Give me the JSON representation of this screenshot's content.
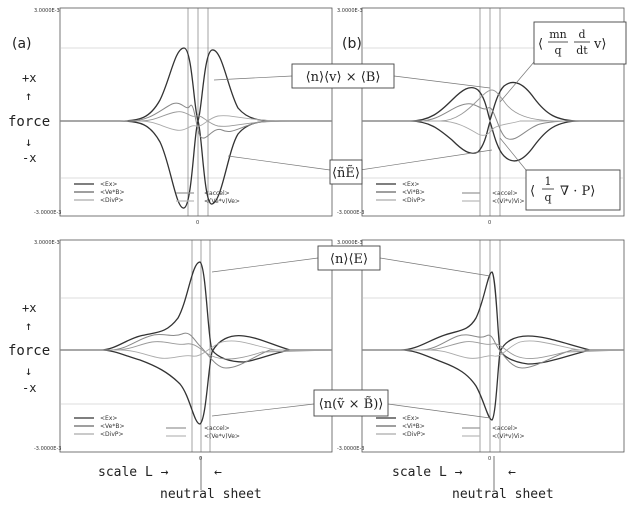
{
  "panel_labels": {
    "a": "(a)",
    "b": "(b)"
  },
  "axis_text": {
    "top_tick": "3.0000E-3",
    "bottom_tick": "-3.0000E-3",
    "zero_tick": "0"
  },
  "side_labels": {
    "plus_x": "+x",
    "up_arrow": "↑",
    "force": "force",
    "down_arrow": "↓",
    "minus_x": "-x"
  },
  "legends": {
    "electron": [
      "<Ex>",
      "<Ve*B>",
      "<DivP>",
      "<accel>",
      "<(Ve*v)Ve>"
    ],
    "ion": [
      "<Ex>",
      "<Vi*B>",
      "<DivP>",
      "<accel>",
      "<(Vi*v)Vi>"
    ]
  },
  "callouts": {
    "vxb_mean": "⟨n⟩⟨v⟩ × ⟨B⟩",
    "e_fluct": "⟨ñẼ⟩",
    "inertia_prefix": "⟨",
    "inertia_num": "mn",
    "inertia_den": "q",
    "inertia_d": "d",
    "inertia_dt": "dt",
    "inertia_suffix": "v⟩",
    "pressure_prefix": "⟨",
    "pressure_num": "1",
    "pressure_den": "q",
    "pressure_suffix": "∇ · P⟩",
    "e_mean": "⟨n⟩⟨E⟩",
    "vxb_fluct": "⟨n(ṽ × B̃)⟩"
  },
  "bottom_labels": {
    "scale": "scale L →",
    "arrow_left": "←",
    "neutral": "neutral sheet"
  },
  "colors": {
    "line_dark": "#333333",
    "line_mid": "#666666",
    "line_light": "#aaaaaa",
    "box": "#444444",
    "leader": "#777777"
  },
  "chart_data": [
    {
      "type": "line",
      "panel": "(a) top",
      "x": "position (0 = neutral sheet)",
      "xlim": [
        -1,
        1
      ],
      "ylim": [
        -0.003,
        0.003
      ],
      "series": [
        {
          "name": "<Ex>",
          "peaks": [
            [
              -0.08,
              0.0026
            ],
            [
              0.08,
              0.0025
            ]
          ]
        },
        {
          "name": "<Ve*B>",
          "peaks": [
            [
              -0.08,
              -0.0026
            ],
            [
              0.08,
              -0.0025
            ]
          ]
        },
        {
          "name": "<DivP>",
          "peaks": [
            [
              -0.05,
              0.0008
            ],
            [
              0.05,
              -0.0008
            ]
          ]
        },
        {
          "name": "<accel>",
          "peaks": [
            [
              -0.02,
              0.0003
            ]
          ]
        },
        {
          "name": "<(Ve*v)Ve>",
          "peaks": [
            [
              -0.1,
              -0.0004
            ]
          ]
        }
      ]
    },
    {
      "type": "line",
      "panel": "(b) top",
      "x": "position (0 = neutral sheet)",
      "xlim": [
        -1,
        1
      ],
      "ylim": [
        -0.003,
        0.003
      ],
      "series": [
        {
          "name": "<Ex>",
          "peaks": [
            [
              -0.1,
              0.0011
            ],
            [
              0.1,
              0.0012
            ]
          ]
        },
        {
          "name": "<Vi*B>",
          "peaks": [
            [
              -0.1,
              -0.001
            ],
            [
              0.1,
              -0.0012
            ]
          ]
        },
        {
          "name": "<DivP>",
          "peaks": [
            [
              -0.05,
              0.0006
            ],
            [
              0.05,
              -0.0006
            ]
          ]
        },
        {
          "name": "<accel>",
          "peaks": [
            [
              0,
              0.0009
            ]
          ]
        },
        {
          "name": "<(Vi*v)Vi>",
          "peaks": [
            [
              0,
              -0.0005
            ]
          ]
        }
      ]
    },
    {
      "type": "line",
      "panel": "(a) bottom",
      "x": "position (0 = neutral sheet)",
      "xlim": [
        -1,
        1
      ],
      "ylim": [
        -0.003,
        0.003
      ],
      "series": [
        {
          "name": "<Ex>",
          "peaks": [
            [
              0,
              0.0028
            ]
          ]
        },
        {
          "name": "<Ve*B>",
          "peaks": [
            [
              0,
              -0.0026
            ]
          ]
        },
        {
          "name": "<DivP>",
          "peaks": [
            [
              -0.2,
              0.0008
            ],
            [
              0.2,
              -0.0008
            ]
          ]
        },
        {
          "name": "<accel>",
          "peaks": [
            [
              -0.1,
              0.0004
            ]
          ]
        },
        {
          "name": "<(Ve*v)Ve>",
          "peaks": [
            [
              0.1,
              -0.0004
            ]
          ]
        }
      ]
    },
    {
      "type": "line",
      "panel": "(b) bottom",
      "x": "position (0 = neutral sheet)",
      "xlim": [
        -1,
        1
      ],
      "ylim": [
        -0.003,
        0.003
      ],
      "series": [
        {
          "name": "<Ex>",
          "peaks": [
            [
              0,
              0.0025
            ]
          ]
        },
        {
          "name": "<Vi*B>",
          "peaks": [
            [
              0,
              -0.0024
            ]
          ]
        },
        {
          "name": "<DivP>",
          "peaks": [
            [
              -0.15,
              0.0008
            ],
            [
              0.15,
              -0.0008
            ]
          ]
        },
        {
          "name": "<accel>",
          "peaks": [
            [
              -0.05,
              0.0003
            ]
          ]
        },
        {
          "name": "<(Vi*v)Vi>",
          "peaks": [
            [
              0.05,
              -0.0003
            ]
          ]
        }
      ]
    }
  ]
}
